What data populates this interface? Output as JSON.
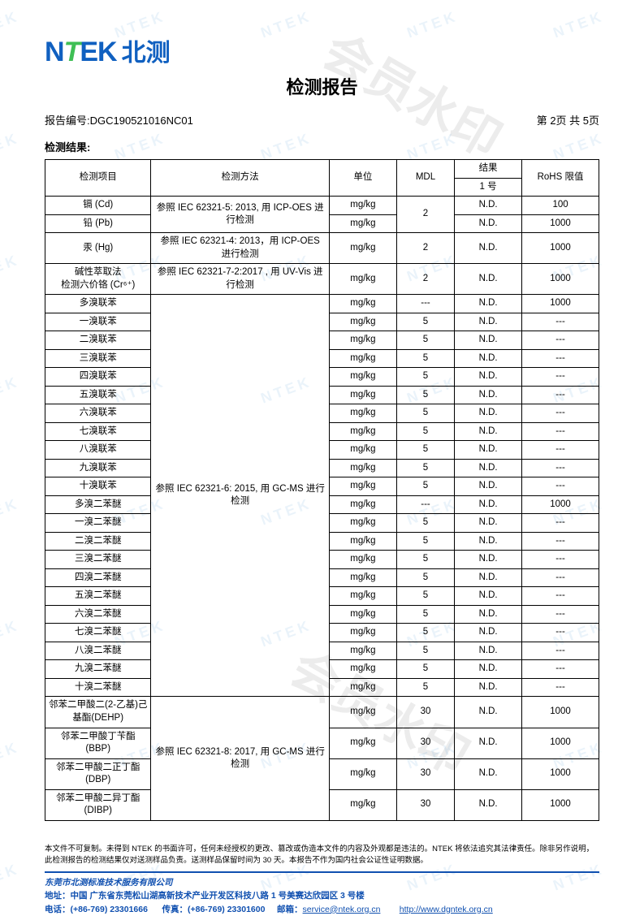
{
  "logo": {
    "prefix": "N",
    "t": "T",
    "suffix": "EK",
    "cn": "北测"
  },
  "title": "检测报告",
  "report_no_label": "报告编号:",
  "report_no": "DGC190521016NC01",
  "page_info": "第 2页 共 5页",
  "section_heading": "检测结果:",
  "table": {
    "headers": {
      "item": "检测项目",
      "method": "检测方法",
      "unit": "单位",
      "mdl": "MDL",
      "result_top": "结果",
      "result_sub": "1 号",
      "limit": "RoHS 限值"
    },
    "groups": [
      {
        "method": "参照 IEC 62321-5: 2013, 用 ICP-OES 进行检测",
        "rows": [
          {
            "item": "镉 (Cd)",
            "unit": "mg/kg",
            "mdl": "2",
            "mdl_rowspan": 2,
            "result": "N.D.",
            "limit": "100"
          },
          {
            "item": "铅 (Pb)",
            "unit": "mg/kg",
            "result": "N.D.",
            "limit": "1000"
          }
        ]
      },
      {
        "method": "参照 IEC 62321-4: 2013，用 ICP-OES 进行检测",
        "rows": [
          {
            "item": "汞 (Hg)",
            "unit": "mg/kg",
            "mdl": "2",
            "result": "N.D.",
            "limit": "1000"
          }
        ]
      },
      {
        "method": "参照  IEC 62321-7-2:2017 , 用 UV-Vis 进行检测",
        "rows": [
          {
            "item": "碱性萃取法\n检测六价铬 (Cr⁶⁺)",
            "unit": "mg/kg",
            "mdl": "2",
            "result": "N.D.",
            "limit": "1000"
          }
        ]
      },
      {
        "method": "参照 IEC 62321-6: 2015, 用 GC-MS 进行检测",
        "rows": [
          {
            "item": "多溴联苯",
            "unit": "mg/kg",
            "mdl": "---",
            "result": "N.D.",
            "limit": "1000"
          },
          {
            "item": "一溴联苯",
            "unit": "mg/kg",
            "mdl": "5",
            "result": "N.D.",
            "limit": "---"
          },
          {
            "item": "二溴联苯",
            "unit": "mg/kg",
            "mdl": "5",
            "result": "N.D.",
            "limit": "---"
          },
          {
            "item": "三溴联苯",
            "unit": "mg/kg",
            "mdl": "5",
            "result": "N.D.",
            "limit": "---"
          },
          {
            "item": "四溴联苯",
            "unit": "mg/kg",
            "mdl": "5",
            "result": "N.D.",
            "limit": "---"
          },
          {
            "item": "五溴联苯",
            "unit": "mg/kg",
            "mdl": "5",
            "result": "N.D.",
            "limit": "---"
          },
          {
            "item": "六溴联苯",
            "unit": "mg/kg",
            "mdl": "5",
            "result": "N.D.",
            "limit": "---"
          },
          {
            "item": "七溴联苯",
            "unit": "mg/kg",
            "mdl": "5",
            "result": "N.D.",
            "limit": "---"
          },
          {
            "item": "八溴联苯",
            "unit": "mg/kg",
            "mdl": "5",
            "result": "N.D.",
            "limit": "---"
          },
          {
            "item": "九溴联苯",
            "unit": "mg/kg",
            "mdl": "5",
            "result": "N.D.",
            "limit": "---"
          },
          {
            "item": "十溴联苯",
            "unit": "mg/kg",
            "mdl": "5",
            "result": "N.D.",
            "limit": "---"
          },
          {
            "item": "多溴二苯醚",
            "unit": "mg/kg",
            "mdl": "---",
            "result": "N.D.",
            "limit": "1000"
          },
          {
            "item": "一溴二苯醚",
            "unit": "mg/kg",
            "mdl": "5",
            "result": "N.D.",
            "limit": "---"
          },
          {
            "item": "二溴二苯醚",
            "unit": "mg/kg",
            "mdl": "5",
            "result": "N.D.",
            "limit": "---"
          },
          {
            "item": "三溴二苯醚",
            "unit": "mg/kg",
            "mdl": "5",
            "result": "N.D.",
            "limit": "---"
          },
          {
            "item": "四溴二苯醚",
            "unit": "mg/kg",
            "mdl": "5",
            "result": "N.D.",
            "limit": "---"
          },
          {
            "item": "五溴二苯醚",
            "unit": "mg/kg",
            "mdl": "5",
            "result": "N.D.",
            "limit": "---"
          },
          {
            "item": "六溴二苯醚",
            "unit": "mg/kg",
            "mdl": "5",
            "result": "N.D.",
            "limit": "---"
          },
          {
            "item": "七溴二苯醚",
            "unit": "mg/kg",
            "mdl": "5",
            "result": "N.D.",
            "limit": "---"
          },
          {
            "item": "八溴二苯醚",
            "unit": "mg/kg",
            "mdl": "5",
            "result": "N.D.",
            "limit": "---"
          },
          {
            "item": "九溴二苯醚",
            "unit": "mg/kg",
            "mdl": "5",
            "result": "N.D.",
            "limit": "---"
          },
          {
            "item": "十溴二苯醚",
            "unit": "mg/kg",
            "mdl": "5",
            "result": "N.D.",
            "limit": "---"
          }
        ]
      },
      {
        "method": "参照 IEC 62321-8: 2017, 用  GC-MS 进行检测",
        "rows": [
          {
            "item": "邻苯二甲酸二(2-乙基)己基酯(DEHP)",
            "unit": "mg/kg",
            "mdl": "30",
            "result": "N.D.",
            "limit": "1000"
          },
          {
            "item": "邻苯二甲酸丁苄酯(BBP)",
            "unit": "mg/kg",
            "mdl": "30",
            "result": "N.D.",
            "limit": "1000"
          },
          {
            "item": "邻苯二甲酸二正丁酯(DBP)",
            "unit": "mg/kg",
            "mdl": "30",
            "result": "N.D.",
            "limit": "1000"
          },
          {
            "item": "邻苯二甲酸二异丁酯(DIBP)",
            "unit": "mg/kg",
            "mdl": "30",
            "result": "N.D.",
            "limit": "1000"
          }
        ]
      }
    ]
  },
  "disclaimer": "本文件不可复制。未得到 NTEK 的书面许可，任何未经授权的更改、篡改或伪造本文件的内容及外观都是违法的。NTEK 将依法追究其法律责任。除非另作说明，此检测报告的检测结果仅对送测样品负责。送测样品保留时间为 30 天。本报告不作为国内社会公证性证明数据。",
  "footer": {
    "company": "东莞市北测标准技术服务有限公司",
    "addr_label": "地址：",
    "addr": "中国 广东省东莞松山湖高新技术产业开发区科技八路 1 号美赛达欣园区 3 号楼",
    "tel_label": "电话：",
    "tel": "(+86-769) 23301666",
    "fax_label": "传真：",
    "fax": "(+86-769) 23301600",
    "mail_label": "邮箱：",
    "mail": "service@ntek.org.cn",
    "web": "http://www.dgntek.org.cn"
  },
  "watermark_text": "NTEK",
  "watermark_big": "会员水印"
}
